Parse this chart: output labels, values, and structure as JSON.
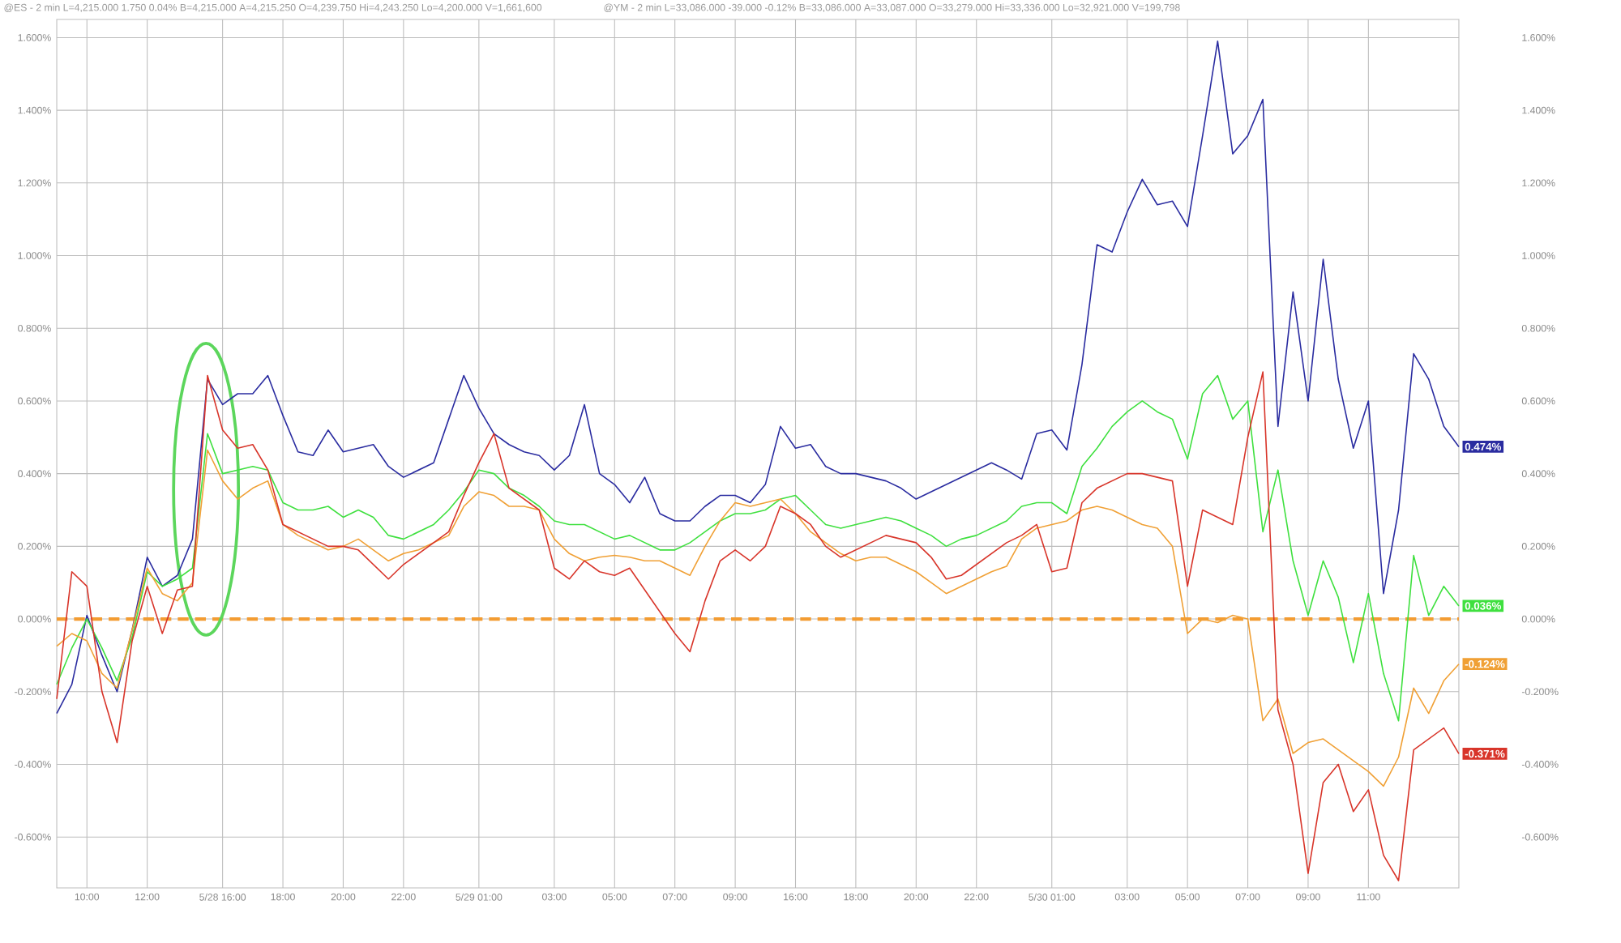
{
  "chart_data": {
    "type": "line",
    "categories": [
      null,
      null,
      "10:00",
      null,
      null,
      null,
      "12:00",
      null,
      null,
      null,
      null,
      "5/28 16:00",
      null,
      null,
      null,
      "18:00",
      null,
      null,
      null,
      "20:00",
      null,
      null,
      null,
      "22:00",
      null,
      null,
      null,
      null,
      "5/29 01:00",
      null,
      null,
      null,
      null,
      "03:00",
      null,
      null,
      null,
      "05:00",
      null,
      null,
      null,
      "07:00",
      null,
      null,
      null,
      "09:00",
      null,
      null,
      null,
      "16:00",
      null,
      null,
      null,
      "18:00",
      null,
      null,
      null,
      "20:00",
      null,
      null,
      null,
      "22:00",
      null,
      null,
      null,
      null,
      "5/30 01:00",
      null,
      null,
      null,
      null,
      "03:00",
      null,
      null,
      null,
      "05:00",
      null,
      null,
      null,
      "07:00",
      null,
      null,
      null,
      "09:00",
      null,
      null,
      null,
      "11:00",
      null,
      null,
      null,
      null,
      null,
      null
    ],
    "ylim": [
      -0.74,
      1.65
    ],
    "y2lim": [
      -0.74,
      1.65
    ],
    "yticks": [
      {
        "value": -0.6,
        "label": "-0.600%"
      },
      {
        "value": -0.4,
        "label": "-0.400%"
      },
      {
        "value": -0.2,
        "label": "-0.200%"
      },
      {
        "value": 0,
        "label": "0.000%"
      },
      {
        "value": 0.2,
        "label": "0.200%"
      },
      {
        "value": 0.4,
        "label": "0.400%"
      },
      {
        "value": 0.6,
        "label": "0.600%"
      },
      {
        "value": 0.8,
        "label": "0.800%"
      },
      {
        "value": 1.0,
        "label": "1.000%"
      },
      {
        "value": 1.2,
        "label": "1.200%"
      },
      {
        "value": 1.4,
        "label": "1.400%"
      },
      {
        "value": 1.6,
        "label": "1.600%"
      }
    ],
    "y2ticks": [
      {
        "value": -0.6,
        "label": "-0.600%"
      },
      {
        "value": -0.4,
        "label": "-0.400%"
      },
      {
        "value": -0.2,
        "label": "-0.200%"
      },
      {
        "value": 0,
        "label": "0.000%"
      },
      {
        "value": 0.2,
        "label": "0.200%"
      },
      {
        "value": 0.4,
        "label": "0.400%"
      },
      {
        "value": 0.6,
        "label": "0.600%"
      },
      {
        "value": 0.8,
        "label": "0.800%"
      },
      {
        "value": 1.0,
        "label": "1.000%"
      },
      {
        "value": 1.2,
        "label": "1.200%"
      },
      {
        "value": 1.4,
        "label": "1.400%"
      },
      {
        "value": 1.6,
        "label": "1.600%"
      }
    ],
    "grid": true,
    "ref_lines": [
      {
        "axis": "y",
        "value": 0,
        "color": "#f39c32",
        "line_style": "dashed"
      }
    ],
    "series": [
      {
        "color": "#2a2ca0",
        "values": [
          -0.26,
          -0.18,
          0.01,
          -0.1,
          -0.2,
          -0.03,
          0.17,
          0.09,
          0.12,
          0.22,
          0.66,
          0.59,
          0.62,
          0.62,
          0.67,
          0.56,
          0.46,
          0.45,
          0.52,
          0.46,
          0.47,
          0.48,
          0.42,
          0.39,
          0.41,
          0.43,
          0.55,
          0.67,
          0.58,
          0.51,
          0.48,
          0.46,
          0.45,
          0.41,
          0.45,
          0.59,
          0.4,
          0.37,
          0.32,
          0.39,
          0.29,
          0.27,
          0.27,
          0.31,
          0.34,
          0.34,
          0.32,
          0.37,
          0.53,
          0.47,
          0.48,
          0.42,
          0.4,
          0.4,
          0.39,
          0.38,
          0.36,
          0.33,
          0.35,
          0.37,
          0.39,
          0.41,
          0.43,
          0.41,
          0.385,
          0.51,
          0.52,
          0.465,
          0.7,
          1.03,
          1.01,
          1.12,
          1.21,
          1.14,
          1.15,
          1.08,
          1.33,
          1.59,
          1.28,
          1.33,
          1.43,
          0.53,
          0.9,
          0.6,
          0.99,
          0.66,
          0.47,
          0.6,
          0.07,
          0.3,
          0.73,
          0.66,
          0.53,
          0.474
        ]
      },
      {
        "color": "#3fe03f",
        "values": [
          -0.18,
          -0.08,
          0.0,
          -0.08,
          -0.17,
          -0.05,
          0.13,
          0.09,
          0.11,
          0.14,
          0.51,
          0.4,
          0.41,
          0.42,
          0.41,
          0.32,
          0.3,
          0.3,
          0.31,
          0.28,
          0.3,
          0.28,
          0.23,
          0.22,
          0.24,
          0.26,
          0.3,
          0.35,
          0.41,
          0.4,
          0.36,
          0.34,
          0.31,
          0.27,
          0.26,
          0.26,
          0.24,
          0.22,
          0.23,
          0.21,
          0.19,
          0.19,
          0.21,
          0.24,
          0.27,
          0.29,
          0.29,
          0.3,
          0.33,
          0.34,
          0.3,
          0.26,
          0.25,
          0.26,
          0.27,
          0.28,
          0.27,
          0.25,
          0.23,
          0.2,
          0.22,
          0.23,
          0.25,
          0.27,
          0.31,
          0.32,
          0.32,
          0.29,
          0.42,
          0.47,
          0.53,
          0.57,
          0.6,
          0.57,
          0.55,
          0.44,
          0.62,
          0.67,
          0.55,
          0.6,
          0.24,
          0.41,
          0.16,
          0.01,
          0.16,
          0.06,
          -0.12,
          0.07,
          -0.15,
          -0.28,
          0.175,
          0.01,
          0.09,
          0.036
        ]
      },
      {
        "color": "#f0a035",
        "values": [
          -0.075,
          -0.04,
          -0.06,
          -0.15,
          -0.19,
          -0.03,
          0.14,
          0.07,
          0.05,
          0.1,
          0.465,
          0.38,
          0.33,
          0.36,
          0.38,
          0.26,
          0.23,
          0.21,
          0.19,
          0.2,
          0.22,
          0.19,
          0.16,
          0.18,
          0.19,
          0.21,
          0.23,
          0.31,
          0.35,
          0.34,
          0.31,
          0.31,
          0.3,
          0.22,
          0.18,
          0.16,
          0.17,
          0.175,
          0.17,
          0.16,
          0.16,
          0.14,
          0.12,
          0.2,
          0.27,
          0.32,
          0.31,
          0.32,
          0.33,
          0.29,
          0.24,
          0.21,
          0.18,
          0.16,
          0.17,
          0.17,
          0.15,
          0.13,
          0.1,
          0.07,
          0.09,
          0.11,
          0.13,
          0.145,
          0.22,
          0.25,
          0.26,
          0.27,
          0.3,
          0.31,
          0.3,
          0.28,
          0.26,
          0.25,
          0.2,
          -0.04,
          0.0,
          -0.01,
          0.01,
          0.0,
          -0.28,
          -0.22,
          -0.37,
          -0.34,
          -0.33,
          -0.36,
          -0.39,
          -0.42,
          -0.46,
          -0.38,
          -0.19,
          -0.26,
          -0.17,
          -0.124
        ]
      },
      {
        "color": "#d8352a",
        "values": [
          -0.22,
          0.13,
          0.09,
          -0.2,
          -0.34,
          -0.06,
          0.09,
          -0.04,
          0.08,
          0.09,
          0.67,
          0.52,
          0.47,
          0.48,
          0.41,
          0.26,
          0.24,
          0.22,
          0.2,
          0.2,
          0.19,
          0.15,
          0.11,
          0.15,
          0.18,
          0.21,
          0.24,
          0.34,
          0.43,
          0.51,
          0.36,
          0.33,
          0.3,
          0.14,
          0.11,
          0.16,
          0.13,
          0.12,
          0.14,
          0.08,
          0.02,
          -0.04,
          -0.09,
          0.05,
          0.16,
          0.19,
          0.16,
          0.2,
          0.31,
          0.29,
          0.26,
          0.2,
          0.17,
          0.19,
          0.21,
          0.23,
          0.22,
          0.21,
          0.17,
          0.11,
          0.12,
          0.15,
          0.18,
          0.21,
          0.23,
          0.26,
          0.13,
          0.14,
          0.32,
          0.36,
          0.38,
          0.4,
          0.4,
          0.39,
          0.38,
          0.09,
          0.3,
          0.28,
          0.26,
          0.5,
          0.68,
          -0.25,
          -0.4,
          -0.7,
          -0.45,
          -0.4,
          -0.53,
          -0.47,
          -0.65,
          -0.72,
          -0.36,
          -0.33,
          -0.3,
          -0.371
        ]
      }
    ],
    "annotations": [
      "0.474%",
      "0.036%",
      "-0.124%",
      "-0.371%",
      "@ES - 2 min L=4,215.000 1.750 0.04% B=4,215.000 A=4,215.250 O=4,239.750 Hi=4,243.250 Lo=4,200.000 V=1,661,600",
      "@YM - 2 min L=33,086.000 -39.000 -0.12% B=33,086.000 A=33,087.000 O=33,279.000 Hi=33,336.000 Lo=32,921.000 V=199,798"
    ]
  }
}
